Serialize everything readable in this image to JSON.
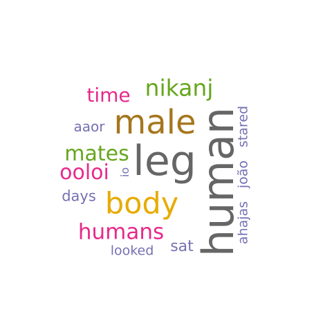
{
  "words": {
    "nikanj": {
      "text": "nikanj",
      "color": "#66a61e"
    },
    "time": {
      "text": "time",
      "color": "#e7298a"
    },
    "male": {
      "text": "male",
      "color": "#a6761d"
    },
    "aaor": {
      "text": "aaor",
      "color": "#7570b3"
    },
    "human": {
      "text": "human",
      "color": "#666666"
    },
    "stared": {
      "text": "stared",
      "color": "#7570b3"
    },
    "joao": {
      "text": "joão",
      "color": "#7570b3"
    },
    "ahajas": {
      "text": "ahajas",
      "color": "#7570b3"
    },
    "mates": {
      "text": "mates",
      "color": "#66a61e"
    },
    "leg": {
      "text": "leg",
      "color": "#666666"
    },
    "io": {
      "text": "io",
      "color": "#7570b3"
    },
    "ooloi": {
      "text": "ooloi",
      "color": "#e7298a"
    },
    "days": {
      "text": "days",
      "color": "#7570b3"
    },
    "body": {
      "text": "body",
      "color": "#e6ab02"
    },
    "humans": {
      "text": "humans",
      "color": "#e7298a"
    },
    "sat": {
      "text": "sat",
      "color": "#7570b3"
    },
    "looked": {
      "text": "looked",
      "color": "#7570b3"
    }
  }
}
